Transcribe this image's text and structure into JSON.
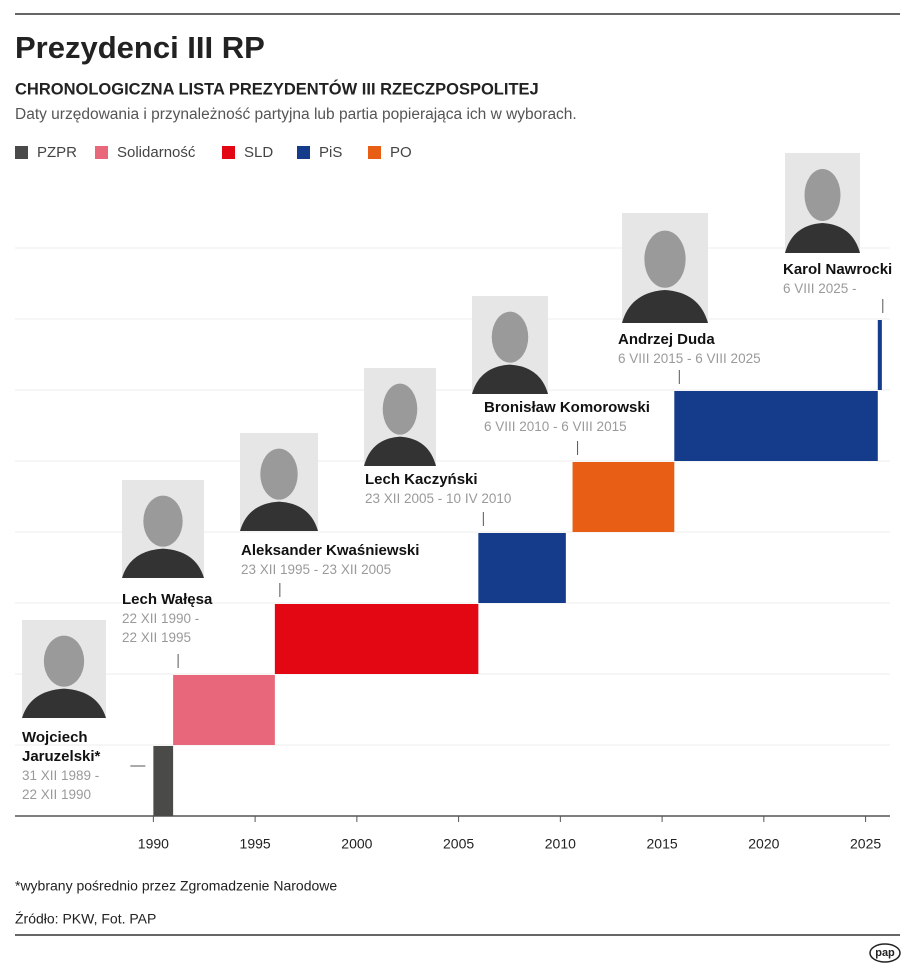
{
  "chart_data": {
    "type": "timeline",
    "title": "Prezydenci III RP",
    "subtitle": "CHRONOLOGICZNA LISTA PREZYDENTÓW III RZECZPOSPOLITEJ",
    "description": "Daty urzędowania i przynależność partyjna lub partia popierająca ich w wyborach.",
    "series": [
      {
        "name": "PZPR",
        "color": "#4a4a48"
      },
      {
        "name": "Solidarność",
        "color": "#e8677a"
      },
      {
        "name": "SLD",
        "color": "#e30613"
      },
      {
        "name": "PiS",
        "color": "#143c8a"
      },
      {
        "name": "PO",
        "color": "#e85e15"
      }
    ],
    "bars": [
      {
        "name": "Wojciech Jaruzelski*",
        "dates": "31 XII 1989 - 22 XII 1990",
        "start": 1990.0,
        "end": 1990.97,
        "series": 0
      },
      {
        "name": "Lech Wałęsa",
        "dates": "22 XII 1990 - 22 XII 1995",
        "start": 1990.97,
        "end": 1995.97,
        "series": 1
      },
      {
        "name": "Aleksander Kwaśniewski",
        "dates": "23 XII 1995 - 23 XII 2005",
        "start": 1995.97,
        "end": 2005.97,
        "series": 2
      },
      {
        "name": "Lech Kaczyński",
        "dates": "23 XII 2005 - 10 IV 2010",
        "start": 2005.97,
        "end": 2010.27,
        "series": 3
      },
      {
        "name": "Bronisław Komorowski",
        "dates": "6 VIII 2010 - 6 VIII 2015",
        "start": 2010.6,
        "end": 2015.6,
        "series": 4
      },
      {
        "name": "Andrzej Duda",
        "dates": "6 VIII 2015 - 6 VIII 2025",
        "start": 2015.6,
        "end": 2025.6,
        "series": 3
      },
      {
        "name": "Karol Nawrocki",
        "dates": "6 VIII 2025 -",
        "start": 2025.6,
        "end": 2025.8,
        "series": 3
      }
    ],
    "xlim": [
      1983.2,
      2026.2
    ],
    "xticks": [
      1990,
      1995,
      2000,
      2005,
      2010,
      2015,
      2020,
      2025
    ],
    "grid": true,
    "footnote": "*wybrany pośrednio przez Zgromadzenie Narodowe",
    "source": "Źródło: PKW, Fot. PAP",
    "logo": "pap"
  }
}
